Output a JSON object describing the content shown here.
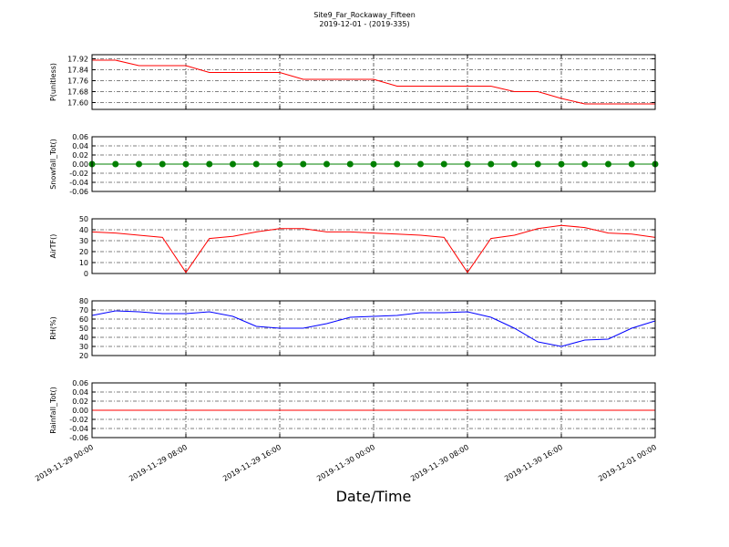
{
  "chart_data": [
    {
      "type": "line",
      "title": "Site9_Far_Rockaway_Fifteen",
      "subtitle": "2019-12-01 - (2019-335)",
      "ylabel": "P(unitless)",
      "x": [
        "2019-11-29 00:00",
        "2019-11-29 02:00",
        "2019-11-29 04:00",
        "2019-11-29 06:00",
        "2019-11-29 08:00",
        "2019-11-29 10:00",
        "2019-11-29 12:00",
        "2019-11-29 14:00",
        "2019-11-29 16:00",
        "2019-11-29 18:00",
        "2019-11-29 20:00",
        "2019-11-29 22:00",
        "2019-11-30 00:00",
        "2019-11-30 02:00",
        "2019-11-30 04:00",
        "2019-11-30 06:00",
        "2019-11-30 08:00",
        "2019-11-30 10:00",
        "2019-11-30 12:00",
        "2019-11-30 14:00",
        "2019-11-30 16:00",
        "2019-11-30 18:00",
        "2019-11-30 20:00",
        "2019-11-30 22:00",
        "2019-12-01 00:00"
      ],
      "series": [
        {
          "name": "P",
          "color": "#ff0000",
          "values": [
            17.91,
            17.91,
            17.87,
            17.87,
            17.87,
            17.82,
            17.82,
            17.82,
            17.82,
            17.77,
            17.77,
            17.77,
            17.77,
            17.72,
            17.72,
            17.72,
            17.72,
            17.72,
            17.68,
            17.68,
            17.63,
            17.59,
            17.59,
            17.59,
            17.59
          ]
        }
      ],
      "ylim": [
        17.55,
        17.95
      ],
      "yticks": [
        {
          "value": 17.6,
          "label": "17.60"
        },
        {
          "value": 17.68,
          "label": "17.68"
        },
        {
          "value": 17.76,
          "label": "17.76"
        },
        {
          "value": 17.84,
          "label": "17.84"
        },
        {
          "value": 17.92,
          "label": "17.92"
        }
      ],
      "grid": true
    },
    {
      "type": "line",
      "ylabel": "Snowfall_Tot()",
      "x": [
        "2019-11-29 00:00",
        "2019-11-29 02:00",
        "2019-11-29 04:00",
        "2019-11-29 06:00",
        "2019-11-29 08:00",
        "2019-11-29 10:00",
        "2019-11-29 12:00",
        "2019-11-29 14:00",
        "2019-11-29 16:00",
        "2019-11-29 18:00",
        "2019-11-29 20:00",
        "2019-11-29 22:00",
        "2019-11-30 00:00",
        "2019-11-30 02:00",
        "2019-11-30 04:00",
        "2019-11-30 06:00",
        "2019-11-30 08:00",
        "2019-11-30 10:00",
        "2019-11-30 12:00",
        "2019-11-30 14:00",
        "2019-11-30 16:00",
        "2019-11-30 18:00",
        "2019-11-30 20:00",
        "2019-11-30 22:00",
        "2019-12-01 00:00"
      ],
      "series": [
        {
          "name": "Snowfall_Tot",
          "color": "#008000",
          "marker": "o",
          "values": [
            0,
            0,
            0,
            0,
            0,
            0,
            0,
            0,
            0,
            0,
            0,
            0,
            0,
            0,
            0,
            0,
            0,
            0,
            0,
            0,
            0,
            0,
            0,
            0,
            0
          ]
        }
      ],
      "ylim": [
        -0.06,
        0.06
      ],
      "yticks": [
        -0.06,
        -0.04,
        -0.02,
        {
          "value": 0,
          "label": "0.00"
        },
        0.02,
        0.04,
        0.06
      ],
      "grid": true
    },
    {
      "type": "line",
      "ylabel": "AirTF()",
      "x": [
        "2019-11-29 00:00",
        "2019-11-29 02:00",
        "2019-11-29 04:00",
        "2019-11-29 06:00",
        "2019-11-29 08:00",
        "2019-11-29 10:00",
        "2019-11-29 12:00",
        "2019-11-29 14:00",
        "2019-11-29 16:00",
        "2019-11-29 18:00",
        "2019-11-29 20:00",
        "2019-11-29 22:00",
        "2019-11-30 00:00",
        "2019-11-30 02:00",
        "2019-11-30 04:00",
        "2019-11-30 06:00",
        "2019-11-30 08:00",
        "2019-11-30 10:00",
        "2019-11-30 12:00",
        "2019-11-30 14:00",
        "2019-11-30 16:00",
        "2019-11-30 18:00",
        "2019-11-30 20:00",
        "2019-11-30 22:00",
        "2019-12-01 00:00"
      ],
      "series": [
        {
          "name": "AirTF",
          "color": "#ff0000",
          "values": [
            38,
            37,
            35,
            33,
            1,
            32,
            34,
            38,
            41,
            41,
            38,
            38,
            37,
            36,
            35,
            33,
            1,
            32,
            35,
            41,
            44,
            42,
            37,
            36,
            33
          ]
        }
      ],
      "ylim": [
        0,
        50
      ],
      "yticks": [
        0,
        10,
        20,
        30,
        40,
        50
      ],
      "grid": true
    },
    {
      "type": "line",
      "ylabel": "RH(%)",
      "x": [
        "2019-11-29 00:00",
        "2019-11-29 02:00",
        "2019-11-29 04:00",
        "2019-11-29 06:00",
        "2019-11-29 08:00",
        "2019-11-29 10:00",
        "2019-11-29 12:00",
        "2019-11-29 14:00",
        "2019-11-29 16:00",
        "2019-11-29 18:00",
        "2019-11-29 20:00",
        "2019-11-29 22:00",
        "2019-11-30 00:00",
        "2019-11-30 02:00",
        "2019-11-30 04:00",
        "2019-11-30 06:00",
        "2019-11-30 08:00",
        "2019-11-30 10:00",
        "2019-11-30 12:00",
        "2019-11-30 14:00",
        "2019-11-30 16:00",
        "2019-11-30 18:00",
        "2019-11-30 20:00",
        "2019-11-30 22:00",
        "2019-12-01 00:00"
      ],
      "series": [
        {
          "name": "RH",
          "color": "#0000ff",
          "values": [
            64,
            69,
            68,
            66,
            66,
            68,
            63,
            52,
            50,
            50,
            55,
            62,
            63,
            64,
            67,
            67,
            68,
            62,
            50,
            35,
            30,
            37,
            38,
            50,
            58
          ]
        }
      ],
      "ylim": [
        20,
        80
      ],
      "yticks": [
        20,
        30,
        40,
        50,
        60,
        70,
        80
      ],
      "grid": true
    },
    {
      "type": "line",
      "ylabel": "Rainfall_Tot()",
      "xlabel": "Date/Time",
      "x": [
        "2019-11-29 00:00",
        "2019-11-29 02:00",
        "2019-11-29 04:00",
        "2019-11-29 06:00",
        "2019-11-29 08:00",
        "2019-11-29 10:00",
        "2019-11-29 12:00",
        "2019-11-29 14:00",
        "2019-11-29 16:00",
        "2019-11-29 18:00",
        "2019-11-29 20:00",
        "2019-11-29 22:00",
        "2019-11-30 00:00",
        "2019-11-30 02:00",
        "2019-11-30 04:00",
        "2019-11-30 06:00",
        "2019-11-30 08:00",
        "2019-11-30 10:00",
        "2019-11-30 12:00",
        "2019-11-30 14:00",
        "2019-11-30 16:00",
        "2019-11-30 18:00",
        "2019-11-30 20:00",
        "2019-11-30 22:00",
        "2019-12-01 00:00"
      ],
      "series": [
        {
          "name": "Rainfall_Tot",
          "color": "#ff0000",
          "values": [
            0,
            0,
            0,
            0,
            0,
            0,
            0,
            0,
            0,
            0,
            0,
            0,
            0,
            0,
            0,
            0,
            0,
            0,
            0,
            0,
            0,
            0,
            0,
            0,
            0
          ]
        }
      ],
      "ylim": [
        -0.06,
        0.06
      ],
      "yticks": [
        -0.06,
        -0.04,
        -0.02,
        {
          "value": 0,
          "label": "0.00"
        },
        0.02,
        0.04,
        0.06
      ],
      "grid": true,
      "xlim": [
        "2019-11-29 00:00",
        "2019-12-01 00:00"
      ],
      "xticks": [
        "2019-11-29 00:00",
        "2019-11-29 08:00",
        "2019-11-29 16:00",
        "2019-11-30 00:00",
        "2019-11-30 08:00",
        "2019-11-30 16:00",
        "2019-12-01 00:00"
      ]
    }
  ]
}
